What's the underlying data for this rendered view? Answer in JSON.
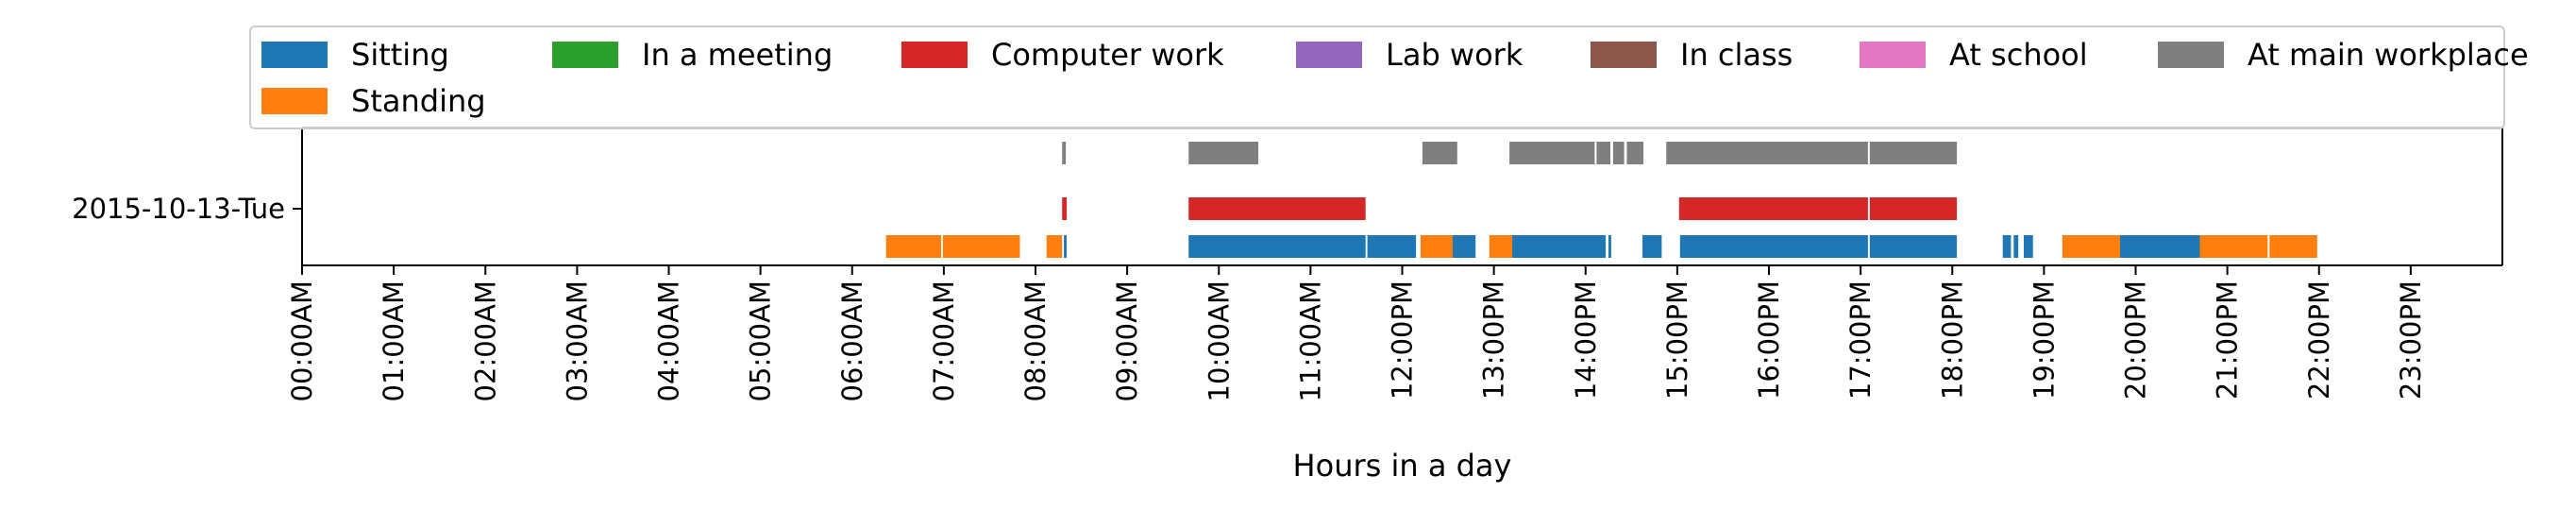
{
  "chart_data": {
    "type": "bar",
    "orientation": "horizontal-timeline",
    "title": "",
    "xlabel": "Hours in a day",
    "ylabel": "",
    "x_unit": "hours",
    "xlim": [
      0,
      24
    ],
    "x_ticks": [
      {
        "value": 0,
        "label": "00:00AM"
      },
      {
        "value": 1,
        "label": "01:00AM"
      },
      {
        "value": 2,
        "label": "02:00AM"
      },
      {
        "value": 3,
        "label": "03:00AM"
      },
      {
        "value": 4,
        "label": "04:00AM"
      },
      {
        "value": 5,
        "label": "05:00AM"
      },
      {
        "value": 6,
        "label": "06:00AM"
      },
      {
        "value": 7,
        "label": "07:00AM"
      },
      {
        "value": 8,
        "label": "08:00AM"
      },
      {
        "value": 9,
        "label": "09:00AM"
      },
      {
        "value": 10,
        "label": "10:00AM"
      },
      {
        "value": 11,
        "label": "11:00AM"
      },
      {
        "value": 12,
        "label": "12:00PM"
      },
      {
        "value": 13,
        "label": "13:00PM"
      },
      {
        "value": 14,
        "label": "14:00PM"
      },
      {
        "value": 15,
        "label": "15:00PM"
      },
      {
        "value": 16,
        "label": "16:00PM"
      },
      {
        "value": 17,
        "label": "17:00PM"
      },
      {
        "value": 18,
        "label": "18:00PM"
      },
      {
        "value": 19,
        "label": "19:00PM"
      },
      {
        "value": 20,
        "label": "20:00PM"
      },
      {
        "value": 21,
        "label": "21:00PM"
      },
      {
        "value": 22,
        "label": "22:00PM"
      },
      {
        "value": 23,
        "label": "23:00PM"
      }
    ],
    "y_ticks": [
      "2015-10-13-Tue"
    ],
    "grid": false,
    "legend": {
      "placement": "top",
      "columns": 7,
      "entries": [
        {
          "key": "sitting",
          "label": "Sitting",
          "color": "#1f77b4"
        },
        {
          "key": "in_a_meeting",
          "label": "In a meeting",
          "color": "#2ca02c"
        },
        {
          "key": "computer_work",
          "label": "Computer work",
          "color": "#d62728"
        },
        {
          "key": "lab_work",
          "label": "Lab work",
          "color": "#9467bd"
        },
        {
          "key": "in_class",
          "label": "In class",
          "color": "#8c564b"
        },
        {
          "key": "at_school",
          "label": "At school",
          "color": "#e377c2"
        },
        {
          "key": "at_main_workplace",
          "label": "At main workplace",
          "color": "#7f7f7f"
        },
        {
          "key": "standing",
          "label": "Standing",
          "color": "#ff7f0e"
        }
      ]
    },
    "series": [
      {
        "key": "sitting",
        "name": "Sitting",
        "color": "#1f77b4",
        "lane": 0,
        "intervals": [
          [
            8.31,
            8.34
          ],
          [
            9.67,
            11.6
          ],
          [
            11.62,
            12.15
          ],
          [
            12.4,
            12.8
          ],
          [
            13.18,
            14.22
          ],
          [
            14.25,
            14.28
          ],
          [
            14.62,
            14.83
          ],
          [
            15.03,
            17.08
          ],
          [
            17.1,
            18.05
          ],
          [
            18.55,
            18.64
          ],
          [
            18.67,
            18.72
          ],
          [
            18.78,
            18.88
          ],
          [
            19.83,
            20.7
          ]
        ]
      },
      {
        "key": "standing",
        "name": "Standing",
        "color": "#ff7f0e",
        "lane": 0,
        "intervals": [
          [
            6.37,
            6.97
          ],
          [
            6.99,
            7.83
          ],
          [
            8.12,
            8.29
          ],
          [
            12.2,
            12.55
          ],
          [
            12.95,
            13.2
          ],
          [
            19.2,
            19.83
          ],
          [
            20.7,
            21.44
          ],
          [
            21.46,
            21.98
          ]
        ]
      },
      {
        "key": "computer_work",
        "name": "Computer work",
        "color": "#d62728",
        "lane": 1,
        "intervals": [
          [
            8.29,
            8.34
          ],
          [
            9.67,
            11.6
          ],
          [
            15.02,
            17.08
          ],
          [
            17.1,
            18.05
          ]
        ]
      },
      {
        "key": "at_main_workplace",
        "name": "At main workplace",
        "color": "#7f7f7f",
        "lane": 2,
        "intervals": [
          [
            8.29,
            8.33
          ],
          [
            9.67,
            10.43
          ],
          [
            12.22,
            12.6
          ],
          [
            13.17,
            14.1
          ],
          [
            14.12,
            14.27
          ],
          [
            14.3,
            14.42
          ],
          [
            14.45,
            14.63
          ],
          [
            14.88,
            17.08
          ],
          [
            17.1,
            18.05
          ]
        ]
      }
    ]
  }
}
